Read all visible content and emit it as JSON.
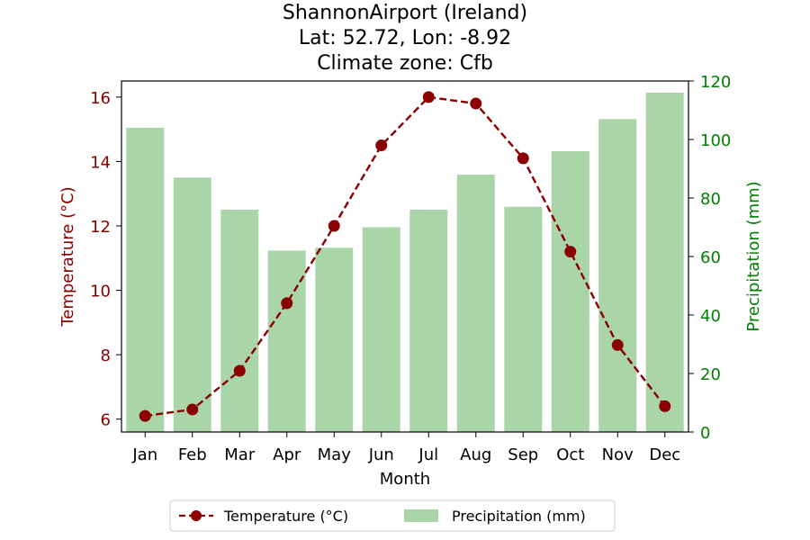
{
  "title_lines": [
    "ShannonAirport (Ireland)",
    "Lat: 52.72, Lon: -8.92",
    "Climate zone: Cfb"
  ],
  "colors": {
    "temperature": "#8b0000",
    "precipitation": "#a9d5a9",
    "precip_axis": "#008000"
  },
  "chart_data": {
    "type": "bar",
    "title": "ShannonAirport (Ireland)\nLat: 52.72, Lon: -8.92\nClimate zone: Cfb",
    "xlabel": "Month",
    "categories": [
      "Jan",
      "Feb",
      "Mar",
      "Apr",
      "May",
      "Jun",
      "Jul",
      "Aug",
      "Sep",
      "Oct",
      "Nov",
      "Dec"
    ],
    "series": [
      {
        "name": "Temperature (°C)",
        "type": "line",
        "axis": "left",
        "values": [
          6.1,
          6.3,
          7.5,
          9.6,
          12.0,
          14.5,
          16.0,
          15.8,
          14.1,
          11.2,
          8.3,
          6.4
        ]
      },
      {
        "name": "Precipitation (mm)",
        "type": "bar",
        "axis": "right",
        "values": [
          104,
          87,
          76,
          62,
          63,
          70,
          76,
          88,
          77,
          96,
          107,
          116
        ]
      }
    ],
    "y_left": {
      "label": "Temperature (°C)",
      "ylim": [
        5.6,
        16.5
      ],
      "ticks": [
        6,
        8,
        10,
        12,
        14,
        16
      ]
    },
    "y_right": {
      "label": "Precipitation (mm)",
      "ylim": [
        0,
        120
      ],
      "ticks": [
        0,
        20,
        40,
        60,
        80,
        100,
        120
      ]
    },
    "grid": false,
    "legend": {
      "placement": "bottom-center",
      "entries": [
        "Temperature (°C)",
        "Precipitation (mm)"
      ]
    }
  }
}
